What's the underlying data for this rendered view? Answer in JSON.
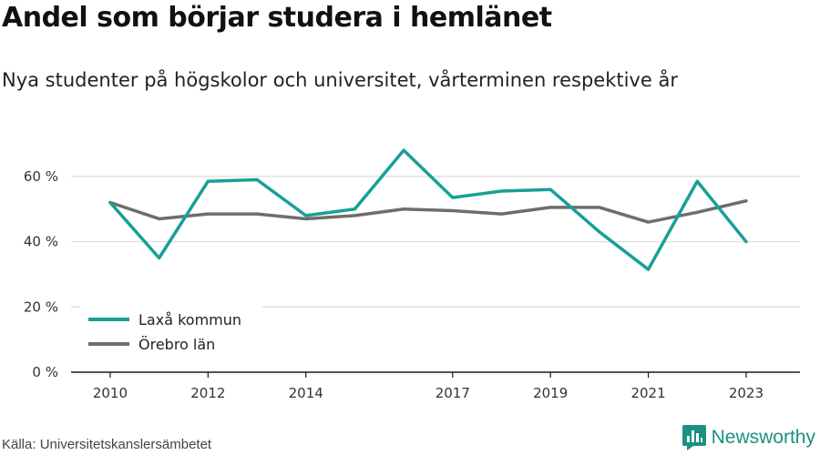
{
  "title": "Andel som börjar studera i hemlänet",
  "subtitle": "Nya studenter på högskolor och universitet, vårterminen respektive år",
  "source": "Källa: Universitetskanslersämbetet",
  "brand": "Newsworthy",
  "colors": {
    "accent": "#17a096",
    "gray": "#6d6d6d",
    "grid": "#dcdcdc",
    "axis": "#1a1a1a",
    "brand": "#1c8f83"
  },
  "chart_data": {
    "type": "line",
    "x": [
      2010,
      2011,
      2012,
      2013,
      2014,
      2015,
      2016,
      2017,
      2018,
      2019,
      2020,
      2021,
      2022,
      2023
    ],
    "x_tick_values": [
      2010,
      2012,
      2014,
      2017,
      2019,
      2021,
      2023
    ],
    "x_tick_labels": [
      "2010",
      "2012",
      "2014",
      "2017",
      "2019",
      "2021",
      "2023"
    ],
    "y_tick_values": [
      0,
      20,
      40,
      60
    ],
    "y_tick_labels": [
      "0 %",
      "20 %",
      "40 %",
      "60 %"
    ],
    "ylim": [
      0,
      70
    ],
    "xlim": [
      2009.2,
      2024.1
    ],
    "grid": true,
    "legend_position": "bottom-left",
    "series": [
      {
        "name": "Laxå kommun",
        "color": "#17a096",
        "values": [
          52,
          35,
          58.5,
          59,
          48,
          50,
          68,
          53.5,
          55.5,
          56,
          43,
          31.5,
          58.5,
          40
        ]
      },
      {
        "name": "Örebro län",
        "color": "#6d6d6d",
        "values": [
          52,
          47,
          48.5,
          48.5,
          47,
          48,
          50,
          49.5,
          48.5,
          50.5,
          50.5,
          46,
          49,
          52.5
        ]
      }
    ]
  }
}
